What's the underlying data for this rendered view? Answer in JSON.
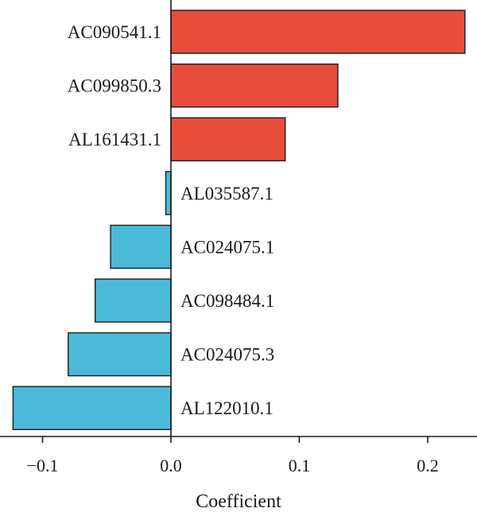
{
  "chart_data": {
    "type": "bar",
    "orientation": "horizontal",
    "xlabel": "Coefficient",
    "xlim": [
      -0.123,
      0.23
    ],
    "xticks": [
      -0.1,
      0.0,
      0.1,
      0.2
    ],
    "xtick_labels": [
      "−0.1",
      "0.0",
      "0.1",
      "0.2"
    ],
    "grid": false,
    "categories": [
      "AC090541.1",
      "AC099850.3",
      "AL161431.1",
      "AL035587.1",
      "AC024075.1",
      "AC098484.1",
      "AC024075.3",
      "AL122010.1"
    ],
    "values": [
      0.229,
      0.13,
      0.089,
      -0.004,
      -0.047,
      -0.059,
      -0.08,
      -0.123
    ],
    "colors": {
      "positive": "#e84c3b",
      "negative": "#4bbad8",
      "edge": "#1a1a1a"
    }
  }
}
